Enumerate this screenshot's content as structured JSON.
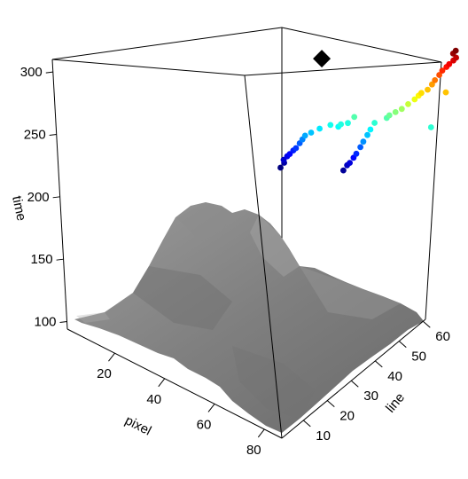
{
  "chart_data": {
    "type": "scatter",
    "title": "",
    "xlabel": "pixel",
    "ylabel": "line",
    "zlabel": "time",
    "x_ticks": [
      20,
      40,
      60,
      80
    ],
    "y_ticks": [
      10,
      20,
      30,
      40,
      50,
      60
    ],
    "z_ticks": [
      100,
      150,
      200,
      250,
      300
    ],
    "xlim": [
      1,
      87
    ],
    "ylim": [
      1,
      61
    ],
    "zlim": [
      94,
      310
    ],
    "surface": "grey terrain (volcano topography) drawn at the base of the box",
    "colormap": "jet (blue = earliest time, red = latest time)",
    "marker": {
      "shape": "diamond",
      "color": "#000000",
      "x": 47,
      "y": 45,
      "time": 300
    },
    "points": [
      {
        "x": 46,
        "y": 37,
        "time": 226
      },
      {
        "x": 46,
        "y": 38,
        "time": 229
      },
      {
        "x": 47,
        "y": 37,
        "time": 232
      },
      {
        "x": 47,
        "y": 38,
        "time": 234
      },
      {
        "x": 48,
        "y": 38,
        "time": 236
      },
      {
        "x": 48,
        "y": 39,
        "time": 238
      },
      {
        "x": 49,
        "y": 39,
        "time": 240
      },
      {
        "x": 49,
        "y": 40,
        "time": 243
      },
      {
        "x": 50,
        "y": 40,
        "time": 246
      },
      {
        "x": 51,
        "y": 40,
        "time": 249
      },
      {
        "x": 52,
        "y": 41,
        "time": 251
      },
      {
        "x": 54,
        "y": 42,
        "time": 254
      },
      {
        "x": 57,
        "y": 43,
        "time": 257
      },
      {
        "x": 59,
        "y": 44,
        "time": 256
      },
      {
        "x": 60,
        "y": 44,
        "time": 258
      },
      {
        "x": 60,
        "y": 46,
        "time": 258
      },
      {
        "x": 61,
        "y": 47,
        "time": 262
      },
      {
        "x": 63,
        "y": 44,
        "time": 228
      },
      {
        "x": 63,
        "y": 45,
        "time": 231
      },
      {
        "x": 64,
        "y": 45,
        "time": 233
      },
      {
        "x": 64,
        "y": 46,
        "time": 236
      },
      {
        "x": 65,
        "y": 46,
        "time": 239
      },
      {
        "x": 65,
        "y": 47,
        "time": 243
      },
      {
        "x": 66,
        "y": 47,
        "time": 247
      },
      {
        "x": 66,
        "y": 48,
        "time": 251
      },
      {
        "x": 67,
        "y": 48,
        "time": 255
      },
      {
        "x": 67,
        "y": 49,
        "time": 259
      },
      {
        "x": 69,
        "y": 51,
        "time": 262
      },
      {
        "x": 70,
        "y": 51,
        "time": 264
      },
      {
        "x": 71,
        "y": 52,
        "time": 266
      },
      {
        "x": 72,
        "y": 53,
        "time": 268
      },
      {
        "x": 73,
        "y": 54,
        "time": 271
      },
      {
        "x": 74,
        "y": 55,
        "time": 274
      },
      {
        "x": 74,
        "y": 56,
        "time": 276
      },
      {
        "x": 75,
        "y": 56,
        "time": 278
      },
      {
        "x": 76,
        "y": 57,
        "time": 280
      },
      {
        "x": 76,
        "y": 58,
        "time": 283
      },
      {
        "x": 77,
        "y": 58,
        "time": 286
      },
      {
        "x": 77,
        "y": 59,
        "time": 289
      },
      {
        "x": 78,
        "y": 59,
        "time": 292
      },
      {
        "x": 78,
        "y": 60,
        "time": 294
      },
      {
        "x": 79,
        "y": 60,
        "time": 296
      },
      {
        "x": 79,
        "y": 61,
        "time": 298
      },
      {
        "x": 80,
        "y": 61,
        "time": 300
      },
      {
        "x": 80,
        "y": 60,
        "time": 303
      },
      {
        "x": 81,
        "y": 60,
        "time": 305
      },
      {
        "x": 84,
        "y": 57,
        "time": 280
      },
      {
        "x": 84,
        "y": 54,
        "time": 259
      }
    ]
  }
}
